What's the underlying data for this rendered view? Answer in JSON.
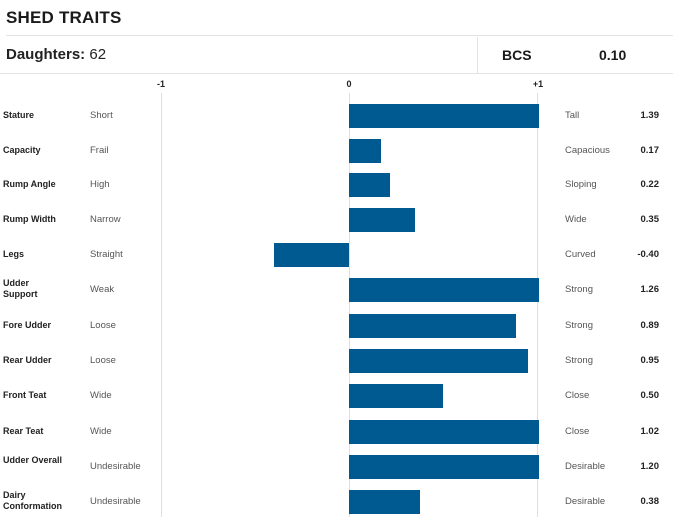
{
  "title": "SHED TRAITS",
  "daughters": {
    "label": "Daughters:",
    "value": "62"
  },
  "bcs": {
    "label": "BCS",
    "value": "0.10"
  },
  "colors": {
    "bar": "#005a92",
    "grid": "#dedede"
  },
  "chart_data": {
    "type": "bar",
    "orientation": "horizontal",
    "xlim": [
      -1,
      1
    ],
    "ticks": [
      "-1",
      "0",
      "+1"
    ],
    "rows": [
      {
        "name": "Stature",
        "low": "Short",
        "high": "Tall",
        "value": 1.39,
        "display": "1.39"
      },
      {
        "name": "Capacity",
        "low": "Frail",
        "high": "Capacious",
        "value": 0.17,
        "display": "0.17"
      },
      {
        "name": "Rump Angle",
        "low": "High",
        "high": "Sloping",
        "value": 0.22,
        "display": "0.22"
      },
      {
        "name": "Rump Width",
        "low": "Narrow",
        "high": "Wide",
        "value": 0.35,
        "display": "0.35"
      },
      {
        "name": "Legs",
        "low": "Straight",
        "high": "Curved",
        "value": -0.4,
        "display": "-0.40"
      },
      {
        "name": "Udder Support",
        "low": "Weak",
        "high": "Strong",
        "value": 1.26,
        "display": "1.26"
      },
      {
        "name": "Fore Udder",
        "low": "Loose",
        "high": "Strong",
        "value": 0.89,
        "display": "0.89"
      },
      {
        "name": "Rear Udder",
        "low": "Loose",
        "high": "Strong",
        "value": 0.95,
        "display": "0.95"
      },
      {
        "name": "Front Teat",
        "low": "Wide",
        "high": "Close",
        "value": 0.5,
        "display": "0.50"
      },
      {
        "name": "Rear Teat",
        "low": "Wide",
        "high": "Close",
        "value": 1.02,
        "display": "1.02"
      },
      {
        "name": "Udder Overall",
        "low": "Undesirable",
        "high": "Desirable",
        "value": 1.2,
        "display": "1.20"
      },
      {
        "name": "Dairy Conformation",
        "low": "Undesirable",
        "high": "Desirable",
        "value": 0.38,
        "display": "0.38"
      }
    ]
  }
}
